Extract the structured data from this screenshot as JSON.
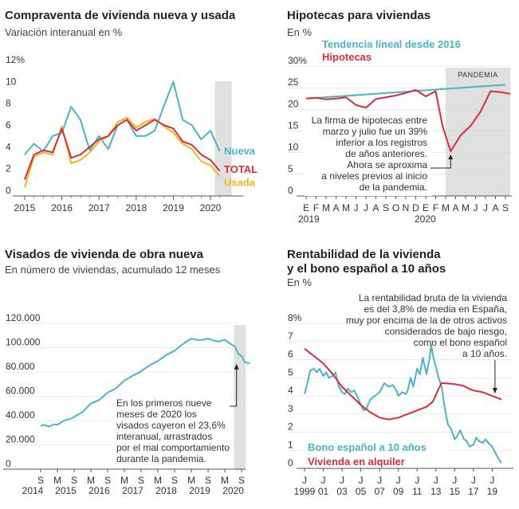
{
  "colors": {
    "blue": "#4bb3c9",
    "red": "#d62d3b",
    "yellow": "#f2b61c",
    "shade": "#e0e0e0",
    "axis": "#555555",
    "grid": "#d8d8d8"
  },
  "chart_data": [
    {
      "id": "compraventa",
      "type": "line",
      "title": "Compraventa de vivienda nueva y usada",
      "subtitle": "Variación interanual en %",
      "ylim": [
        0,
        12
      ],
      "yticks": [
        "0",
        "2",
        "4",
        "6",
        "8",
        "10",
        "12%"
      ],
      "xlim": [
        2015,
        2020.75
      ],
      "xticks": [
        "2015",
        "2016",
        "2017",
        "2018",
        "2019",
        "2020"
      ],
      "shade": [
        2020.12,
        2020.57
      ],
      "series": [
        {
          "name": "Nueva",
          "color": "blue",
          "x": [
            2015.0,
            2015.25,
            2015.5,
            2015.75,
            2016.0,
            2016.25,
            2016.5,
            2016.75,
            2017.0,
            2017.25,
            2017.5,
            2017.75,
            2018.0,
            2018.25,
            2018.5,
            2018.75,
            2019.0,
            2019.25,
            2019.5,
            2019.75,
            2020.0,
            2020.25
          ],
          "y": [
            3.8,
            4.8,
            4.1,
            5.5,
            5.8,
            8.2,
            7.0,
            4.2,
            5.5,
            4.3,
            6.5,
            7.0,
            5.5,
            5.5,
            6.0,
            8.3,
            10.5,
            7.0,
            6.5,
            5.2,
            6.0,
            4.1
          ]
        },
        {
          "name": "TOTAL",
          "color": "red",
          "x": [
            2015.0,
            2015.25,
            2015.5,
            2015.75,
            2016.0,
            2016.25,
            2016.5,
            2016.75,
            2017.0,
            2017.25,
            2017.5,
            2017.75,
            2018.0,
            2018.25,
            2018.5,
            2018.75,
            2019.0,
            2019.25,
            2019.5,
            2019.75,
            2020.0,
            2020.25
          ],
          "y": [
            1.5,
            3.8,
            4.2,
            4.0,
            6.2,
            3.5,
            3.8,
            4.5,
            5.2,
            5.5,
            6.5,
            7.0,
            6.0,
            6.5,
            7.0,
            6.5,
            6.2,
            5.0,
            4.7,
            3.8,
            3.3,
            2.3
          ]
        },
        {
          "name": "Usada",
          "color": "yellow",
          "x": [
            2015.0,
            2015.25,
            2015.5,
            2015.75,
            2016.0,
            2016.25,
            2016.5,
            2016.75,
            2017.0,
            2017.25,
            2017.5,
            2017.75,
            2018.0,
            2018.25,
            2018.5,
            2018.75,
            2019.0,
            2019.25,
            2019.5,
            2019.75,
            2020.0,
            2020.25
          ],
          "y": [
            0.8,
            3.6,
            4.0,
            3.8,
            6.4,
            3.0,
            3.3,
            4.0,
            5.0,
            5.5,
            6.8,
            7.2,
            6.3,
            6.8,
            7.1,
            6.4,
            5.8,
            4.8,
            4.3,
            3.2,
            2.8,
            1.8
          ]
        }
      ]
    },
    {
      "id": "hipotecas",
      "type": "line",
      "title": "Hipotecas para viviendas",
      "subtitle": "En %",
      "ylim": [
        0,
        30
      ],
      "yticks": [
        "0",
        "5",
        "10",
        "15",
        "20",
        "25",
        "30%"
      ],
      "xticks": [
        "E",
        "F",
        "M",
        "A",
        "M",
        "J",
        "J",
        "A",
        "S",
        "O",
        "N",
        "D",
        "E",
        "F",
        "M",
        "A",
        "M",
        "J",
        "J",
        "A",
        "S"
      ],
      "xyears": [
        "2019",
        "2020"
      ],
      "shade_label": "PANDEMIA",
      "shade": [
        14,
        20
      ],
      "series": [
        {
          "name": "Tendencia lineal desde 2016",
          "color": "blue",
          "x": [
            0,
            20
          ],
          "y": [
            22.5,
            25.7
          ]
        },
        {
          "name": "Hipotecas",
          "color": "red",
          "x": [
            0,
            1,
            2,
            3,
            4,
            5,
            6,
            7,
            8,
            9,
            10,
            11,
            12,
            13,
            13.7,
            14.5,
            15.5,
            16.5,
            17.5,
            18.5,
            19.5,
            20.5
          ],
          "y": [
            22.5,
            22.7,
            22.3,
            22.5,
            22.8,
            21.0,
            20.4,
            22.4,
            22.8,
            23.2,
            23.8,
            24.5,
            23.0,
            24.2,
            16.0,
            10.3,
            14.0,
            16.2,
            19.5,
            24.2,
            24.0,
            23.6
          ]
        }
      ],
      "annotation": [
        "La firma de hipotecas entre",
        "marzo y julio fue un 39%",
        "inferior a los registros",
        "de años anteriores.",
        "Ahora se aproxima",
        "a niveles previos al inicio",
        "de la pandemia."
      ]
    },
    {
      "id": "visados",
      "type": "line",
      "title": "Visados de vivienda de obra nueva",
      "subtitle": "En número de viviendas, acumulado 12 meses",
      "ylim": [
        0,
        120000
      ],
      "yticks": [
        "0",
        "20.000",
        "40.000",
        "60.000",
        "80.000",
        "100.000",
        "120.000"
      ],
      "xticks": [
        "S",
        "M",
        "S",
        "M",
        "S",
        "M",
        "S",
        "M",
        "S",
        "M",
        "S",
        "M",
        "S"
      ],
      "xyears": [
        "2014",
        "2015",
        "2016",
        "2017",
        "2018",
        "2019",
        "2020"
      ],
      "shade": [
        11.55,
        12.25
      ],
      "series": [
        {
          "name": "",
          "color": "blue",
          "x": [
            0,
            0.2,
            0.5,
            0.8,
            1.0,
            1.4,
            1.8,
            2.0,
            2.5,
            3.0,
            3.5,
            4.0,
            4.5,
            5.0,
            5.5,
            6.0,
            6.5,
            7.0,
            7.5,
            8.0,
            8.3,
            8.6,
            9.0,
            9.5,
            10.0,
            10.3,
            10.6,
            11.0,
            11.3,
            11.6,
            11.8,
            12.0,
            12.2,
            12.5
          ],
          "y": [
            35500,
            36500,
            35000,
            37000,
            36500,
            40000,
            41500,
            43000,
            47000,
            54000,
            57000,
            63000,
            66500,
            73000,
            77000,
            80500,
            85500,
            89000,
            94000,
            97500,
            101000,
            104000,
            107500,
            106000,
            107500,
            106000,
            105000,
            106500,
            103500,
            101000,
            95000,
            93000,
            88000,
            87000
          ]
        }
      ],
      "annotation": [
        "En los primeros nueve",
        "meses de 2020 los",
        "visados cayeron el 23,6%",
        "interanual, arrastrados",
        "por el mal comportamiento",
        "durante la pandemia."
      ]
    },
    {
      "id": "rentabilidad",
      "type": "line",
      "title": [
        "Rentabilidad de la vivienda",
        "y el bono español a 10 años"
      ],
      "subtitle": "En %",
      "ylim": [
        0,
        8
      ],
      "yticks": [
        "0",
        "1",
        "2",
        "3",
        "4",
        "5",
        "6",
        "7",
        "8%"
      ],
      "xlim": [
        1999,
        2020.5
      ],
      "xticks": [
        "J",
        "J",
        "J",
        "J",
        "J",
        "J",
        "J",
        "J",
        "J",
        "J",
        "J"
      ],
      "xyears": [
        "1999",
        "01",
        "03",
        "05",
        "07",
        "09",
        "11",
        "13",
        "15",
        "17",
        "19"
      ],
      "series": [
        {
          "name": "Bono español a 10 años",
          "color": "blue",
          "x": [
            1999.0,
            1999.3,
            1999.6,
            2000.0,
            2000.3,
            2000.6,
            2001.0,
            2001.3,
            2001.6,
            2002.0,
            2002.3,
            2002.6,
            2003.0,
            2003.3,
            2003.6,
            2004.0,
            2004.3,
            2004.6,
            2005.0,
            2005.3,
            2005.6,
            2006.0,
            2006.5,
            2007.0,
            2007.5,
            2008.0,
            2008.4,
            2008.8,
            2009.0,
            2009.4,
            2009.8,
            2010.0,
            2010.3,
            2010.6,
            2011.0,
            2011.3,
            2011.6,
            2012.0,
            2012.3,
            2012.5,
            2012.7,
            2013.0,
            2013.3,
            2013.6,
            2014.0,
            2014.3,
            2014.6,
            2015.0,
            2015.3,
            2015.6,
            2016.0,
            2016.3,
            2016.6,
            2017.0,
            2017.3,
            2017.6,
            2018.0,
            2018.3,
            2018.6,
            2019.0,
            2019.3,
            2019.6,
            2020.0
          ],
          "y": [
            4.1,
            4.7,
            5.4,
            5.5,
            5.3,
            5.5,
            5.1,
            5.3,
            5.0,
            5.1,
            5.3,
            4.6,
            4.2,
            4.1,
            4.4,
            4.2,
            4.3,
            4.0,
            3.5,
            3.2,
            3.3,
            3.8,
            4.0,
            4.2,
            4.7,
            4.5,
            4.6,
            4.3,
            4.0,
            4.2,
            4.1,
            4.3,
            5.0,
            4.5,
            5.5,
            5.2,
            6.1,
            5.2,
            6.0,
            6.8,
            6.2,
            5.6,
            5.0,
            4.5,
            3.2,
            2.4,
            2.2,
            1.6,
            1.8,
            2.1,
            1.6,
            1.5,
            1.2,
            1.3,
            1.7,
            1.5,
            1.4,
            1.6,
            1.4,
            1.2,
            0.9,
            0.6,
            0.3
          ]
        },
        {
          "name": "Vivienda en alquiler",
          "color": "red",
          "x": [
            1999.0,
            2000.0,
            2001.0,
            2002.0,
            2003.0,
            2004.0,
            2005.0,
            2006.0,
            2007.0,
            2008.0,
            2009.0,
            2010.0,
            2011.0,
            2012.0,
            2012.7,
            2013.3,
            2013.6,
            2014.0,
            2015.0,
            2015.5,
            2016.0,
            2016.5,
            2017.0,
            2018.0,
            2018.5,
            2019.0,
            2020.0
          ],
          "y": [
            6.6,
            6.2,
            5.8,
            5.2,
            4.5,
            4.0,
            3.5,
            3.1,
            2.8,
            2.7,
            2.8,
            3.0,
            3.2,
            3.4,
            3.7,
            4.4,
            4.7,
            4.7,
            4.65,
            4.6,
            4.55,
            4.4,
            4.3,
            4.2,
            4.1,
            4.0,
            3.8
          ]
        }
      ],
      "annotation": [
        "La rentabilidad bruta de la vivienda",
        "es del 3,8% de media en España,",
        "muy por encima de la de otros activos",
        "considerados de bajo riesgo,",
        "como el bono español",
        "a 10 años."
      ]
    }
  ]
}
